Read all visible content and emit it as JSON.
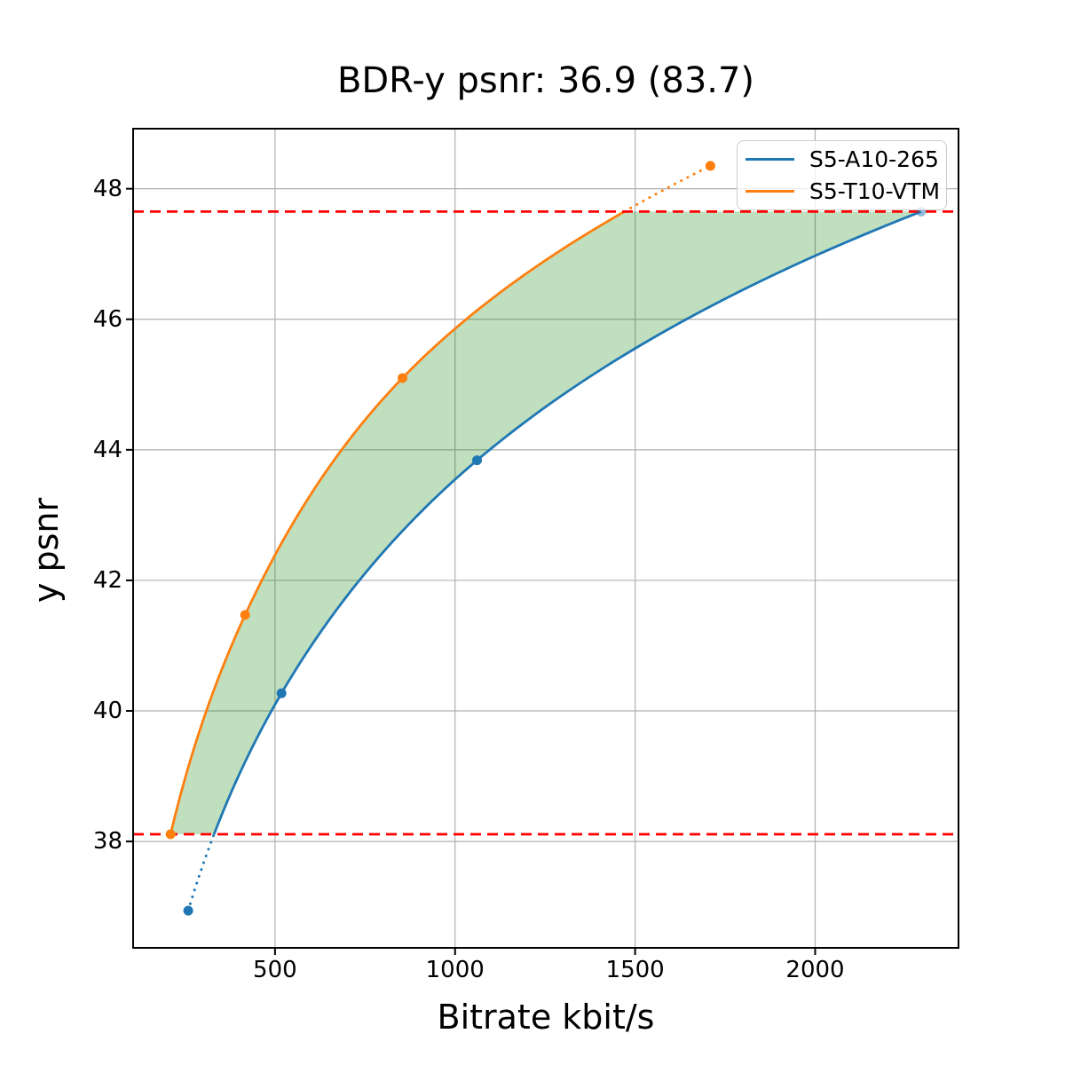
{
  "title": "BDR-y psnr: 36.9 (83.7)",
  "chart_data": {
    "type": "line",
    "title": "BDR-y psnr: 36.9 (83.7)",
    "xlabel": "Bitrate kbit/s",
    "ylabel": "y psnr",
    "xlim": [
      106,
      2398
    ],
    "ylim": [
      36.37,
      48.92
    ],
    "xticks": [
      500,
      1000,
      1500,
      2000
    ],
    "yticks": [
      38,
      40,
      42,
      44,
      46,
      48
    ],
    "grid": true,
    "grid_color": "#b0b0b0",
    "legend_position": "upper right",
    "series": [
      {
        "name": "S5-A10-265",
        "color": "#1f77b4",
        "points": [
          [
            259,
            36.94
          ],
          [
            518,
            40.27
          ],
          [
            1061,
            43.84
          ],
          [
            2294,
            47.65
          ]
        ]
      },
      {
        "name": "S5-T10-VTM",
        "color": "#ff7f0e",
        "points": [
          [
            210,
            38.11
          ],
          [
            417,
            41.47
          ],
          [
            854,
            45.1
          ],
          [
            1709,
            48.35
          ]
        ]
      }
    ],
    "hlines": [
      {
        "y": 38.11,
        "color": "#ff0000",
        "style": "dashed"
      },
      {
        "y": 47.65,
        "color": "#ff0000",
        "style": "dashed"
      }
    ],
    "shaded_region": {
      "between": [
        "S5-T10-VTM",
        "S5-A10-265"
      ],
      "y_range": [
        38.11,
        47.65
      ],
      "color": "#008000",
      "alpha": 0.25
    }
  }
}
